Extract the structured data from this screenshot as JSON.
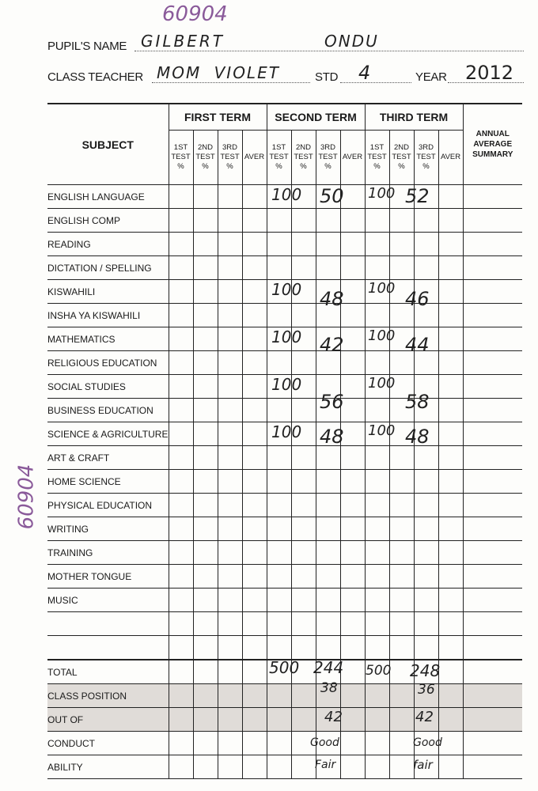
{
  "id_number": "60904",
  "header": {
    "pupil_name_label": "PUPIL'S NAME",
    "pupil_first_name": "GILBERT",
    "pupil_last_name": "ONDU",
    "class_teacher_label": "CLASS TEACHER",
    "class_teacher": "MOM VIOLET",
    "std_label": "STD",
    "std": "4",
    "year_label": "YEAR",
    "year": "2012"
  },
  "table": {
    "subject_header": "SUBJECT",
    "terms": [
      "FIRST TERM",
      "SECOND TERM",
      "THIRD TERM"
    ],
    "test_headers": [
      "1ST TEST %",
      "2ND TEST %",
      "3RD TEST %",
      "AVER"
    ],
    "annual_header": "ANNUAL AVERAGE SUMMARY",
    "subjects": [
      "ENGLISH LANGUAGE",
      "ENGLISH COMP",
      "READING",
      "DICTATION / SPELLING",
      "KISWAHILI",
      "INSHA YA KISWAHILI",
      "MATHEMATICS",
      "RELIGIOUS EDUCATION",
      "SOCIAL STUDIES",
      "BUSINESS EDUCATION",
      "SCIENCE & AGRICULTURE",
      "ART & CRAFT",
      "HOME SCIENCE",
      "PHYSICAL EDUCATION",
      "WRITING",
      "TRAINING",
      "MOTHER TONGUE",
      "MUSIC",
      "",
      ""
    ],
    "footer_rows": [
      "TOTAL",
      "CLASS POSITION",
      "OUT OF",
      "CONDUCT",
      "ABILITY"
    ],
    "marks": {
      "english_language": {
        "second_term_out_of": "100",
        "second_term_score": "50",
        "third_term_out_of": "100",
        "third_term_score": "52"
      },
      "kiswahili": {
        "second_term_out_of": "100",
        "second_term_score": "48",
        "third_term_out_of": "100",
        "third_term_score": "46"
      },
      "mathematics": {
        "second_term_out_of": "100",
        "second_term_score": "42",
        "third_term_out_of": "100",
        "third_term_score": "44"
      },
      "social_studies": {
        "second_term_out_of": "100",
        "second_term_score": "56",
        "third_term_out_of": "100",
        "third_term_score": "58"
      },
      "science_agriculture": {
        "second_term_out_of": "100",
        "second_term_score": "48",
        "third_term_out_of": "100",
        "third_term_score": "48"
      }
    },
    "totals": {
      "second_term_out_of": "500",
      "second_term_score": "244",
      "third_term_out_of": "500",
      "third_term_score": "248",
      "second_class_position": "38",
      "third_class_position": "36",
      "second_out_of": "42",
      "third_out_of": "42",
      "second_conduct": "Good",
      "third_conduct": "Good",
      "second_ability": "Fair",
      "third_ability": "fair"
    }
  }
}
